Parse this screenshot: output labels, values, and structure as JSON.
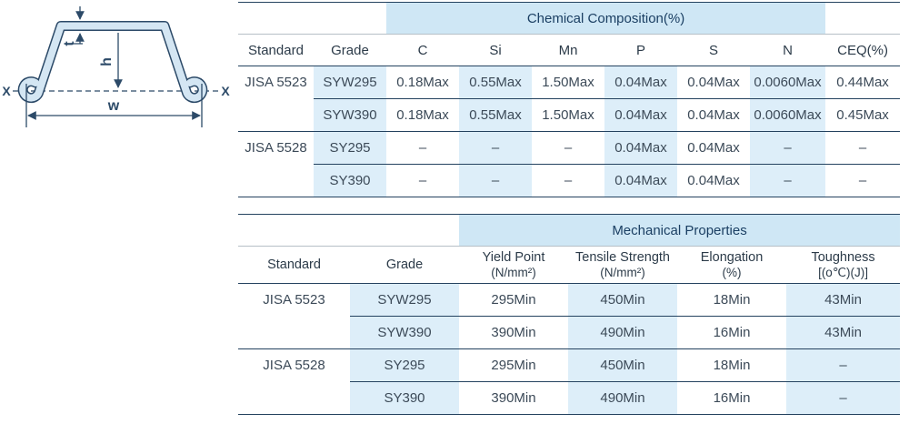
{
  "diagram": {
    "label_t": "t",
    "label_h": "h",
    "label_w": "w",
    "label_x_left": "X",
    "label_x_right": "X"
  },
  "chemical": {
    "band_title": "Chemical Composition(%)",
    "columns": [
      "Standard",
      "Grade",
      "C",
      "Si",
      "Mn",
      "P",
      "S",
      "N",
      "CEQ(%)"
    ],
    "rows": [
      {
        "standard": "JISA 5523",
        "grade": "SYW295",
        "values": [
          "0.18Max",
          "0.55Max",
          "1.50Max",
          "0.04Max",
          "0.04Max",
          "0.0060Max",
          "0.44Max"
        ],
        "group_start": true
      },
      {
        "standard": "",
        "grade": "SYW390",
        "values": [
          "0.18Max",
          "0.55Max",
          "1.50Max",
          "0.04Max",
          "0.04Max",
          "0.0060Max",
          "0.45Max"
        ],
        "group_start": false
      },
      {
        "standard": "JISA 5528",
        "grade": "SY295",
        "values": [
          "–",
          "–",
          "–",
          "0.04Max",
          "0.04Max",
          "–",
          "–"
        ],
        "group_start": true
      },
      {
        "standard": "",
        "grade": "SY390",
        "values": [
          "–",
          "–",
          "–",
          "0.04Max",
          "0.04Max",
          "–",
          "–"
        ],
        "group_start": false
      }
    ]
  },
  "mechanical": {
    "band_title": "Mechanical Properties",
    "columns_line1": [
      "Standard",
      "Grade",
      "Yield Point",
      "Tensile Strength",
      "Elongation",
      "Toughness"
    ],
    "columns_line2": [
      "",
      "",
      "(N/mm²)",
      "(N/mm²)",
      "(%)",
      "[(o℃)(J)]"
    ],
    "rows": [
      {
        "standard": "JISA 5523",
        "grade": "SYW295",
        "values": [
          "295Min",
          "450Min",
          "18Min",
          "43Min"
        ],
        "group_start": true
      },
      {
        "standard": "",
        "grade": "SYW390",
        "values": [
          "390Min",
          "490Min",
          "16Min",
          "43Min"
        ],
        "group_start": false
      },
      {
        "standard": "JISA 5528",
        "grade": "SY295",
        "values": [
          "295Min",
          "450Min",
          "18Min",
          "–"
        ],
        "group_start": true
      },
      {
        "standard": "",
        "grade": "SY390",
        "values": [
          "390Min",
          "490Min",
          "16Min",
          "–"
        ],
        "group_start": false
      }
    ]
  },
  "colors": {
    "band_bg": "#cfe7f5",
    "column_shade": "#ddeef9",
    "rule_dark": "#24425f",
    "rule_gray": "#b6bfc7",
    "band_text": "#1b3f63",
    "header_text": "#2c3b49",
    "body_text": "#3c4a58",
    "diagram_line": "#2c4a68",
    "diagram_fill": "#d4e6f3"
  }
}
